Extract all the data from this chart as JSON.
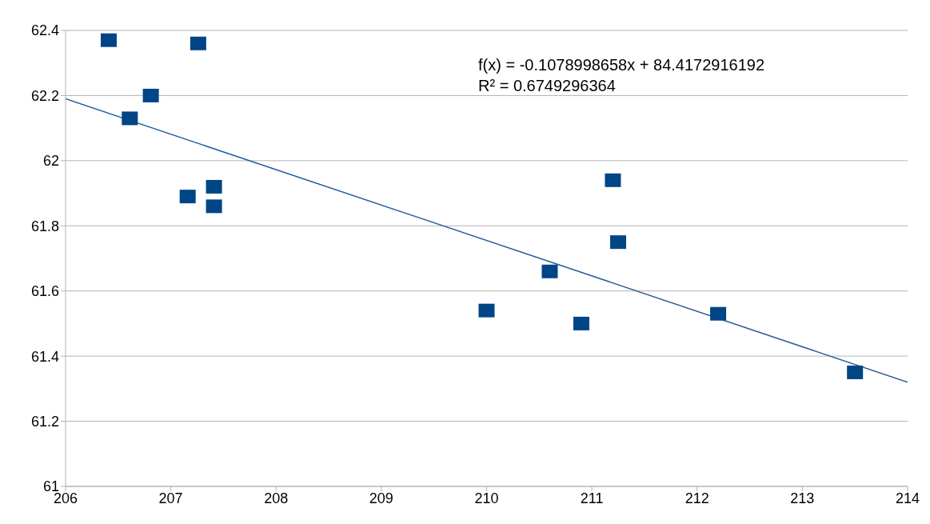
{
  "chart_data": {
    "type": "scatter",
    "marker": "square",
    "grid": "y",
    "xlim": [
      206,
      214
    ],
    "xticks": [
      206,
      207,
      208,
      209,
      210,
      211,
      212,
      213,
      214
    ],
    "ylim": [
      61,
      62.4
    ],
    "yticks": [
      61,
      61.2,
      61.4,
      61.6,
      61.8,
      62,
      62.2,
      62.4
    ],
    "annotations": [
      "f(x) = -0.1078998658x + 84.4172916192",
      "R² = 0.6749296364"
    ],
    "series": [
      {
        "color": "#004586",
        "x": [
          206.41,
          207.26,
          206.81,
          206.61,
          207.16,
          207.41,
          207.41,
          211.2,
          211.25,
          210.6,
          210.0,
          210.9,
          212.2,
          213.5
        ],
        "values": [
          62.37,
          62.36,
          62.2,
          62.13,
          61.89,
          61.92,
          61.86,
          61.94,
          61.75,
          61.66,
          61.54,
          61.5,
          61.53,
          61.35
        ]
      },
      {
        "type": "line",
        "color": "#2a6099",
        "marker": "none",
        "x": [
          206,
          214
        ],
        "values": [
          62.19,
          61.32
        ]
      }
    ]
  }
}
